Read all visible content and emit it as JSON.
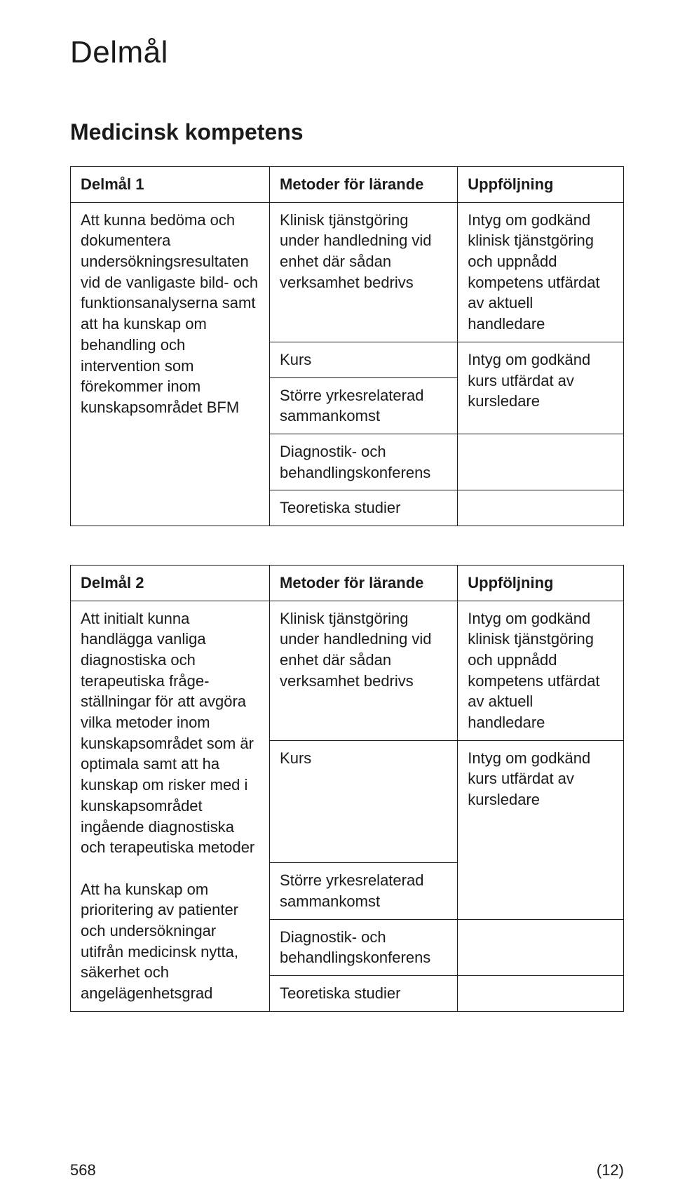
{
  "font_family": "Helvetica Neue, Helvetica, Arial, sans-serif",
  "colors": {
    "text": "#1a1a1a",
    "border": "#1a1a1a",
    "background": "#ffffff"
  },
  "font_sizes": {
    "h1": 44,
    "h2": 32,
    "body": 22
  },
  "page": {
    "title": "Delmål",
    "section_title": "Medicinsk kompetens",
    "page_number": "568",
    "page_of": "(12)"
  },
  "tables": [
    {
      "header": {
        "c1": "Delmål 1",
        "c2": "Metoder för lärande",
        "c3": "Uppföljning"
      },
      "desc": "Att kunna bedöma och dokumentera undersökningsresultaten vid de vanligaste bild- och funktions­analyserna samt att ha kunskap om behandling och intervention som förekommer inom kunskapsområdet BFM",
      "rows_col2": [
        "Klinisk tjänstgöring under handledning vid enhet där sådan verksamhet bedrivs",
        "Kurs",
        "Större yrkesrelaterad sammankomst",
        "Diagnostik- och behandlingskonferens",
        "Teoretiska studier"
      ],
      "rows_col3": [
        "Intyg om godkänd klinisk tjänstgöring och uppnådd kompetens utfärdat av aktuell handledare",
        "Intyg om godkänd kurs utfärdat av kursledare"
      ],
      "col1_rowspan": 5,
      "col3_spans": [
        1,
        2,
        1,
        1
      ],
      "column_widths_pct": [
        36,
        34,
        30
      ]
    },
    {
      "header": {
        "c1": "Delmål 2",
        "c2": "Metoder för lärande",
        "c3": "Uppföljning"
      },
      "desc_parts": [
        "Att initialt kunna handlägga vanliga diagnostiska och terapeutiska fråge­ställningar för att avgöra vilka metoder inom kunskapsområdet som är optimala samt att ha kunskap om risker med i kunskapsområdet ingående diagnostiska och terapeutiska metoder",
        "Att ha kunskap om prioritering av patienter och undersökningar utifrån medicinsk nytta, säkerhet och angelägenhetsgrad"
      ],
      "rows_col2": [
        "Klinisk tjänstgöring under handledning vid enhet där sådan verksamhet bedrivs",
        "Kurs",
        "Större yrkesrelaterad sammankomst",
        "Diagnostik- och behandlingskonferens",
        "Teoretiska studier"
      ],
      "rows_col3": [
        "Intyg om godkänd klinisk tjänstgöring och uppnådd kompetens utfärdat av aktuell handledare",
        "Intyg om godkänd kurs utfärdat av kursledare"
      ],
      "col1_rowspan": 5,
      "col3_spans": [
        1,
        2,
        1,
        1
      ],
      "column_widths_pct": [
        36,
        34,
        30
      ]
    }
  ]
}
